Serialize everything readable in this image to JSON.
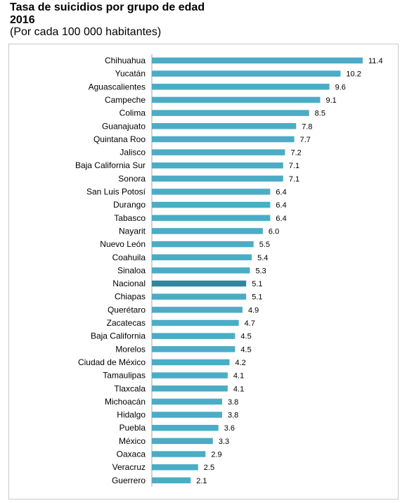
{
  "title": "Tasa de suicidios por grupo de edad",
  "year": "2016",
  "subtitle": "(Por cada 100 000 habitantes)",
  "colors": {
    "bar": "#4bacc6",
    "highlight": "#31859c",
    "axis": "#a6a6a6",
    "frame": "#c9c9c9"
  },
  "chart_data": {
    "type": "bar",
    "orientation": "horizontal",
    "title": "Tasa de suicidios por grupo de edad",
    "subtitle": "(Por cada 100 000 habitantes)",
    "year": "2016",
    "categories": [
      "Chihuahua",
      "Yucatán",
      "Aguascalientes",
      "Campeche",
      "Colima",
      "Guanajuato",
      "Quintana Roo",
      "Jalisco",
      "Baja California Sur",
      "Sonora",
      "San Luis Potosí",
      "Durango",
      "Tabasco",
      "Nayarit",
      "Nuevo León",
      "Coahuila",
      "Sinaloa",
      "Nacional",
      "Chiapas",
      "Querétaro",
      "Zacatecas",
      "Baja California",
      "Morelos",
      "Ciudad de México",
      "Tamaulipas",
      "Tlaxcala",
      "Michoacán",
      "Hidalgo",
      "Puebla",
      "México",
      "Oaxaca",
      "Veracruz",
      "Guerrero"
    ],
    "values": [
      11.4,
      10.2,
      9.6,
      9.1,
      8.5,
      7.8,
      7.7,
      7.2,
      7.1,
      7.1,
      6.4,
      6.4,
      6.4,
      6.0,
      5.5,
      5.4,
      5.3,
      5.1,
      5.1,
      4.9,
      4.7,
      4.5,
      4.5,
      4.2,
      4.1,
      4.1,
      3.8,
      3.8,
      3.6,
      3.3,
      2.9,
      2.5,
      2.1
    ],
    "labels": [
      "11.4",
      "10.2",
      "9.6",
      "9.1",
      "8.5",
      "7.8",
      "7.7",
      "7.2",
      "7.1",
      "7.1",
      "6.4",
      "6.4",
      "6.4",
      "6.0",
      "5.5",
      "5.4",
      "5.3",
      "5.1",
      "5.1",
      "4.9",
      "4.7",
      "4.5",
      "4.5",
      "4.2",
      "4.1",
      "4.1",
      "3.8",
      "3.8",
      "3.6",
      "3.3",
      "2.9",
      "2.5",
      "2.1"
    ],
    "highlight": "Nacional",
    "xlim": [
      0,
      11.4
    ],
    "grid": false,
    "legend": "none"
  }
}
